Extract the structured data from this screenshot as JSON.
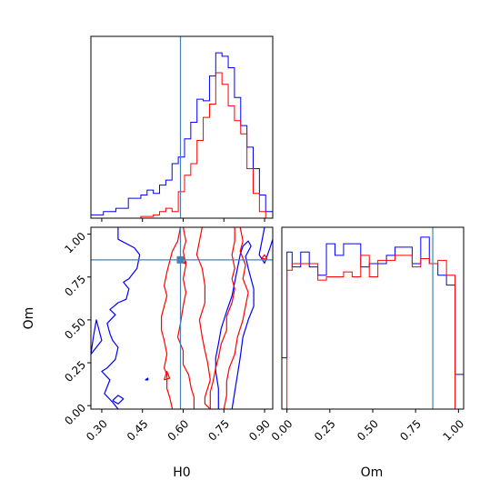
{
  "chart_data": {
    "type": "corner",
    "parameters": [
      "H0",
      "Om"
    ],
    "truths": {
      "H0": 0.59,
      "Om": 0.85
    },
    "truth_color": "#4682b4",
    "series": [
      {
        "color": "#0000ff"
      },
      {
        "color": "#ff0000"
      }
    ],
    "panels": {
      "H0_hist": {
        "xlim": [
          0.26,
          0.93
        ],
        "ylim": [
          0,
          1.1
        ],
        "bin_edges": [
          0.26,
          0.283,
          0.306,
          0.329,
          0.352,
          0.375,
          0.398,
          0.421,
          0.444,
          0.467,
          0.49,
          0.513,
          0.536,
          0.559,
          0.582,
          0.605,
          0.628,
          0.651,
          0.674,
          0.697,
          0.72,
          0.743,
          0.766,
          0.789,
          0.812,
          0.835,
          0.858,
          0.881,
          0.904,
          0.93
        ],
        "blue": [
          0.02,
          0.02,
          0.04,
          0.04,
          0.06,
          0.06,
          0.12,
          0.12,
          0.14,
          0.17,
          0.15,
          0.2,
          0.23,
          0.33,
          0.37,
          0.48,
          0.58,
          0.72,
          0.71,
          0.86,
          1.0,
          0.98,
          0.91,
          0.73,
          0.56,
          0.43,
          0.3,
          0.14,
          0.04
        ],
        "red": [
          0,
          0,
          0,
          0,
          0,
          0,
          0,
          0,
          0.01,
          0.01,
          0.02,
          0.04,
          0.06,
          0.04,
          0.16,
          0.26,
          0.33,
          0.47,
          0.61,
          0.69,
          0.88,
          0.81,
          0.68,
          0.59,
          0.51,
          0.3,
          0.15,
          0.04,
          0
        ]
      },
      "Om_hist": {
        "xlim": [
          -0.03,
          1.03
        ],
        "ylim": [
          0,
          1.1
        ],
        "bin_edges": [
          -0.03,
          0.0,
          0.03,
          0.08,
          0.13,
          0.18,
          0.23,
          0.28,
          0.33,
          0.38,
          0.43,
          0.48,
          0.53,
          0.58,
          0.63,
          0.68,
          0.73,
          0.78,
          0.83,
          0.88,
          0.93,
          0.98,
          1.03
        ],
        "blue": [
          0.31,
          0.95,
          0.86,
          0.95,
          0.86,
          0.81,
          1.0,
          0.93,
          1.0,
          1.0,
          0.86,
          0.88,
          0.88,
          0.93,
          0.98,
          0.98,
          0.88,
          1.04,
          0.88,
          0.81,
          0.75,
          0.21
        ],
        "red": [
          0,
          0.84,
          0.88,
          0.88,
          0.88,
          0.78,
          0.8,
          0.8,
          0.83,
          0.8,
          0.93,
          0.8,
          0.9,
          0.9,
          0.93,
          0.93,
          0.86,
          0.91,
          0.88,
          0.9,
          0.81,
          0
        ]
      },
      "scatter": {
        "xlim": [
          0.26,
          0.93
        ],
        "ylim": [
          -0.02,
          1.04
        ],
        "blue_contours": [
          [
            [
              0.36,
              1.04
            ],
            [
              0.36,
              0.97
            ],
            [
              0.42,
              0.92
            ],
            [
              0.44,
              0.88
            ],
            [
              0.43,
              0.8
            ],
            [
              0.4,
              0.74
            ],
            [
              0.38,
              0.72
            ],
            [
              0.4,
              0.68
            ],
            [
              0.39,
              0.62
            ],
            [
              0.36,
              0.6
            ],
            [
              0.33,
              0.56
            ],
            [
              0.35,
              0.53
            ],
            [
              0.32,
              0.48
            ],
            [
              0.33,
              0.42
            ],
            [
              0.34,
              0.38
            ],
            [
              0.36,
              0.34
            ],
            [
              0.35,
              0.27
            ],
            [
              0.32,
              0.22
            ],
            [
              0.3,
              0.2
            ],
            [
              0.33,
              0.15
            ],
            [
              0.31,
              0.07
            ],
            [
              0.34,
              0.02
            ],
            [
              0.36,
              -0.02
            ]
          ],
          [
            [
              0.26,
              0.3
            ],
            [
              0.27,
              0.41
            ],
            [
              0.28,
              0.5
            ],
            [
              0.3,
              0.38
            ],
            [
              0.26,
              0.3
            ]
          ],
          [
            [
              0.34,
              0.03
            ],
            [
              0.36,
              0.06
            ],
            [
              0.38,
              0.04
            ],
            [
              0.36,
              0.01
            ],
            [
              0.34,
              0.03
            ]
          ],
          [
            [
              0.73,
              -0.02
            ],
            [
              0.73,
              0.1
            ],
            [
              0.72,
              0.2
            ],
            [
              0.72,
              0.28
            ],
            [
              0.73,
              0.36
            ],
            [
              0.74,
              0.45
            ],
            [
              0.76,
              0.55
            ],
            [
              0.78,
              0.64
            ],
            [
              0.79,
              0.72
            ],
            [
              0.8,
              0.8
            ],
            [
              0.81,
              0.88
            ],
            [
              0.82,
              0.93
            ],
            [
              0.84,
              0.96
            ],
            [
              0.85,
              0.93
            ],
            [
              0.83,
              0.87
            ],
            [
              0.84,
              0.8
            ],
            [
              0.86,
              0.68
            ],
            [
              0.86,
              0.58
            ],
            [
              0.84,
              0.5
            ],
            [
              0.82,
              0.4
            ],
            [
              0.81,
              0.28
            ],
            [
              0.8,
              0.18
            ],
            [
              0.79,
              0.08
            ],
            [
              0.78,
              -0.02
            ]
          ],
          [
            [
              0.9,
              1.04
            ],
            [
              0.89,
              0.96
            ],
            [
              0.88,
              0.88
            ],
            [
              0.9,
              0.83
            ],
            [
              0.92,
              0.92
            ],
            [
              0.93,
              0.97
            ]
          ],
          [
            [
              0.46,
              0.15
            ],
            [
              0.47,
              0.16
            ],
            [
              0.47,
              0.15
            ],
            [
              0.46,
              0.15
            ]
          ]
        ],
        "red_contours": [
          [
            [
              0.56,
              -0.02
            ],
            [
              0.55,
              0.05
            ],
            [
              0.54,
              0.1
            ],
            [
              0.54,
              0.18
            ],
            [
              0.53,
              0.22
            ],
            [
              0.54,
              0.3
            ],
            [
              0.53,
              0.38
            ],
            [
              0.52,
              0.44
            ],
            [
              0.52,
              0.52
            ],
            [
              0.53,
              0.58
            ],
            [
              0.54,
              0.64
            ],
            [
              0.53,
              0.7
            ],
            [
              0.54,
              0.78
            ],
            [
              0.55,
              0.84
            ],
            [
              0.56,
              0.9
            ],
            [
              0.58,
              0.96
            ],
            [
              0.59,
              1.04
            ]
          ],
          [
            [
              0.6,
              1.04
            ],
            [
              0.61,
              0.96
            ],
            [
              0.6,
              0.9
            ],
            [
              0.61,
              0.82
            ],
            [
              0.6,
              0.74
            ],
            [
              0.61,
              0.66
            ],
            [
              0.6,
              0.58
            ],
            [
              0.59,
              0.48
            ],
            [
              0.58,
              0.4
            ],
            [
              0.6,
              0.32
            ],
            [
              0.6,
              0.24
            ],
            [
              0.62,
              0.18
            ],
            [
              0.63,
              0.1
            ],
            [
              0.64,
              0.05
            ],
            [
              0.64,
              -0.02
            ]
          ],
          [
            [
              0.67,
              1.04
            ],
            [
              0.66,
              0.96
            ],
            [
              0.65,
              0.88
            ],
            [
              0.67,
              0.8
            ],
            [
              0.68,
              0.7
            ],
            [
              0.68,
              0.6
            ],
            [
              0.66,
              0.5
            ],
            [
              0.67,
              0.4
            ],
            [
              0.68,
              0.32
            ],
            [
              0.69,
              0.25
            ],
            [
              0.7,
              0.15
            ],
            [
              0.68,
              0.05
            ],
            [
              0.68,
              0.01
            ],
            [
              0.7,
              -0.02
            ]
          ],
          [
            [
              0.79,
              1.04
            ],
            [
              0.79,
              0.96
            ],
            [
              0.78,
              0.88
            ],
            [
              0.79,
              0.8
            ],
            [
              0.78,
              0.74
            ],
            [
              0.79,
              0.68
            ],
            [
              0.78,
              0.6
            ],
            [
              0.76,
              0.52
            ],
            [
              0.76,
              0.44
            ],
            [
              0.74,
              0.36
            ],
            [
              0.73,
              0.28
            ],
            [
              0.72,
              0.22
            ],
            [
              0.71,
              0.14
            ],
            [
              0.7,
              0.08
            ],
            [
              0.7,
              -0.02
            ]
          ],
          [
            [
              0.81,
              1.04
            ],
            [
              0.82,
              0.96
            ],
            [
              0.81,
              0.9
            ],
            [
              0.83,
              0.82
            ],
            [
              0.82,
              0.74
            ],
            [
              0.84,
              0.66
            ],
            [
              0.83,
              0.58
            ],
            [
              0.82,
              0.5
            ],
            [
              0.8,
              0.4
            ],
            [
              0.79,
              0.3
            ],
            [
              0.77,
              0.22
            ],
            [
              0.76,
              0.14
            ],
            [
              0.76,
              0.06
            ],
            [
              0.75,
              -0.02
            ]
          ],
          [
            [
              0.53,
              0.15
            ],
            [
              0.54,
              0.2
            ],
            [
              0.55,
              0.16
            ],
            [
              0.53,
              0.15
            ]
          ],
          [
            [
              0.6,
              0.83
            ],
            [
              0.61,
              0.84
            ],
            [
              0.61,
              0.83
            ],
            [
              0.6,
              0.83
            ]
          ],
          [
            [
              0.89,
              0.86
            ],
            [
              0.9,
              0.88
            ],
            [
              0.91,
              0.85
            ],
            [
              0.89,
              0.86
            ]
          ]
        ]
      }
    },
    "ticks": {
      "H0": [
        "0.30",
        "0.45",
        "0.60",
        "0.75",
        "0.90"
      ],
      "Om": [
        "0.00",
        "0.25",
        "0.50",
        "0.75",
        "1.00"
      ]
    },
    "xlabels": {
      "H0": "H0",
      "Om": "Om"
    },
    "ylabel_scatter": "Om"
  }
}
